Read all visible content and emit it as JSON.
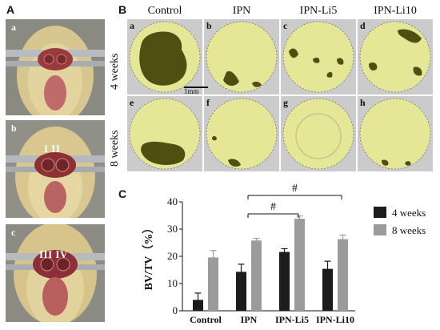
{
  "panel_letters": {
    "a": "A",
    "b": "B",
    "c": "C"
  },
  "photos": [
    {
      "tag": "a",
      "roman": ""
    },
    {
      "tag": "b",
      "roman": "I  II"
    },
    {
      "tag": "c",
      "roman": "III  IV"
    }
  ],
  "micro": {
    "columns": [
      "Control",
      "IPN",
      "IPN-Li5",
      "IPN-Li10"
    ],
    "rows": [
      "4 weeks",
      "8 weeks"
    ],
    "tags": [
      "a",
      "b",
      "c",
      "d",
      "e",
      "f",
      "g",
      "h"
    ],
    "scale_label": "1mm",
    "colors": {
      "bone": "#e6e796",
      "defect": "#4e4f10",
      "rim": "#c5c68a"
    }
  },
  "chart_data": {
    "type": "bar",
    "categories": [
      "Control",
      "IPN",
      "IPN-Li5",
      "IPN-Li10"
    ],
    "series": [
      {
        "name": "4 weeks",
        "values": [
          4.0,
          14.3,
          21.6,
          15.4
        ],
        "errors": [
          2.5,
          2.8,
          1.2,
          2.8
        ],
        "color": "#1c1c1c"
      },
      {
        "name": "8 weeks",
        "values": [
          19.6,
          25.8,
          33.8,
          26.3
        ],
        "errors": [
          2.5,
          0.8,
          1.0,
          1.5
        ],
        "color": "#9b9b9b"
      }
    ],
    "ylabel": "BV/TV（%）",
    "xlabel": "",
    "ylim": [
      0,
      40
    ],
    "yticks": [
      0,
      10,
      20,
      30,
      40
    ],
    "legend_position": "right",
    "annotations": [
      {
        "label": "#",
        "from": "IPN",
        "to": "IPN-Li10"
      },
      {
        "label": "#",
        "from": "IPN",
        "to": "IPN-Li5"
      }
    ]
  }
}
